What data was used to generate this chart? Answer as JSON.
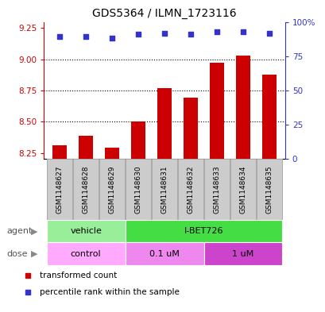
{
  "title": "GDS5364 / ILMN_1723116",
  "samples": [
    "GSM1148627",
    "GSM1148628",
    "GSM1148629",
    "GSM1148630",
    "GSM1148631",
    "GSM1148632",
    "GSM1148633",
    "GSM1148634",
    "GSM1148635"
  ],
  "bar_values": [
    8.31,
    8.39,
    8.29,
    8.5,
    8.77,
    8.69,
    8.97,
    9.03,
    8.88
  ],
  "dot_values": [
    9.18,
    9.18,
    9.17,
    9.2,
    9.21,
    9.2,
    9.22,
    9.22,
    9.21
  ],
  "ylim_left": [
    8.2,
    9.3
  ],
  "ylim_right": [
    0,
    100
  ],
  "yticks_left": [
    8.25,
    8.5,
    8.75,
    9.0,
    9.25
  ],
  "yticks_right": [
    0,
    25,
    50,
    75,
    100
  ],
  "ytick_right_labels": [
    "0",
    "25",
    "50",
    "75",
    "100%"
  ],
  "bar_color": "#cc0000",
  "dot_color": "#3333cc",
  "bar_width": 0.55,
  "gridline_y": [
    8.5,
    8.75,
    9.0
  ],
  "agent_groups": [
    {
      "label": "vehicle",
      "start": 0,
      "end": 3,
      "color": "#99ee99"
    },
    {
      "label": "I-BET726",
      "start": 3,
      "end": 9,
      "color": "#44dd44"
    }
  ],
  "dose_groups": [
    {
      "label": "control",
      "start": 0,
      "end": 3,
      "color": "#ffaaff"
    },
    {
      "label": "0.1 uM",
      "start": 3,
      "end": 6,
      "color": "#ee88ee"
    },
    {
      "label": "1 uM",
      "start": 6,
      "end": 9,
      "color": "#cc44cc"
    }
  ],
  "legend_items": [
    {
      "label": "transformed count",
      "color": "#cc0000",
      "marker": "s"
    },
    {
      "label": "percentile rank within the sample",
      "color": "#3333cc",
      "marker": "s"
    }
  ],
  "agent_label": "agent",
  "dose_label": "dose",
  "left_axis_color": "#cc0000",
  "right_axis_color": "#3333cc",
  "title_color": "#000000",
  "sample_box_color": "#cccccc",
  "sample_box_edge": "#aaaaaa",
  "label_color": "#555555",
  "arrow_color": "#888888"
}
